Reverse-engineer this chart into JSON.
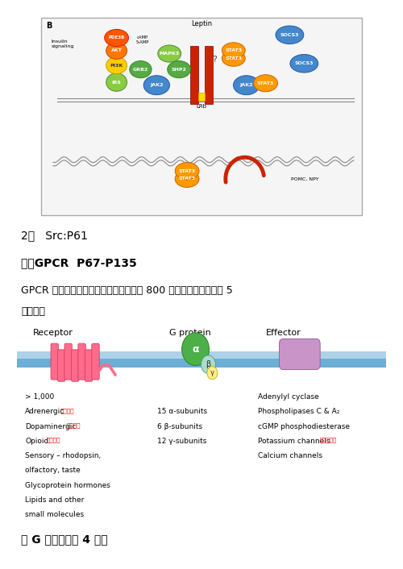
{
  "bg_color": "#ffffff",
  "fig_width": 5.0,
  "fig_height": 7.06,
  "section2_text": "2、   Src:P61",
  "section5_title": "五、GPCR  P67-P135",
  "gpcr_desc_line1": "GPCR 是七次跨膜蛋白，其家族成员大于 800 个，其大致可以分为 5",
  "gpcr_desc_line2": "个家族。",
  "receptor_label": "Receptor",
  "gprotein_label": "G protein",
  "effector_label": "Effector",
  "receptor_items": [
    [
      "> 1,000",
      ""
    ],
    [
      "Adrenergic",
      "肾上腺素"
    ],
    [
      "Dopaminergic",
      "多巴胺的"
    ],
    [
      "Opioid",
      "鸦片片的"
    ],
    [
      "Sensory – rhodopsin,",
      ""
    ],
    [
      "olfactory, taste",
      ""
    ],
    [
      "Glycoprotein hormones",
      ""
    ],
    [
      "Lipids and other",
      ""
    ],
    [
      "small molecules",
      ""
    ]
  ],
  "gprotein_items": [
    "15 α-subunits",
    "6 β-subunits",
    "12 γ-subunits"
  ],
  "effector_items": [
    [
      "Adenylyl cyclase",
      ""
    ],
    [
      "Phospholipases C & A₂",
      ""
    ],
    [
      "cGMP phosphodiesterase",
      ""
    ],
    [
      "Potassium channels",
      "抑制、兴奋"
    ],
    [
      "Calcium channels",
      ""
    ]
  ],
  "bottom_bold_text": "其 G 蛋白有以下 4 类：",
  "membrane_color": "#6baed6",
  "receptor_body_color": "#ff6b8a",
  "gprotein_alpha_color": "#4daf4a",
  "effector_color": "#c994c7",
  "annot_color_red": "#ff0000",
  "font_size_body": 9,
  "font_size_section": 10,
  "font_size_bold": 10,
  "font_size_label": 8
}
